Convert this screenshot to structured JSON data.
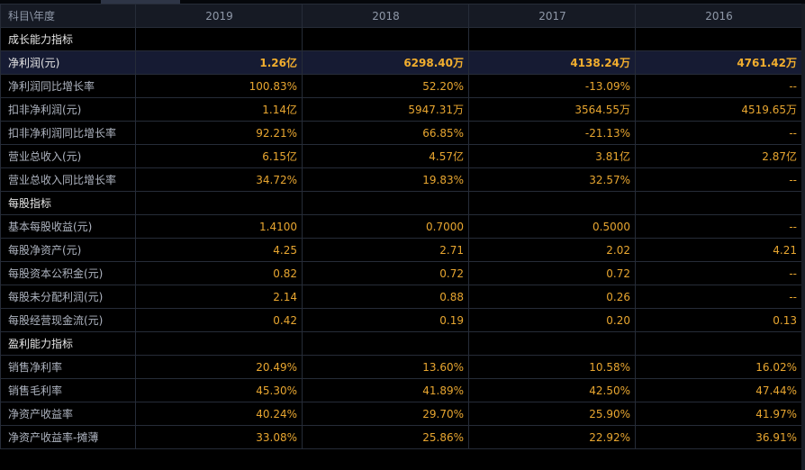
{
  "header": {
    "label": "科目\\年度",
    "years": [
      "2019",
      "2018",
      "2017",
      "2016"
    ]
  },
  "rows": [
    {
      "type": "section",
      "label": "成长能力指标"
    },
    {
      "type": "highlight",
      "label": "净利润(元)",
      "values": [
        "1.26亿",
        "6298.40万",
        "4138.24万",
        "4761.42万"
      ]
    },
    {
      "type": "data",
      "label": "净利润同比增长率",
      "values": [
        "100.83%",
        "52.20%",
        "-13.09%",
        "--"
      ]
    },
    {
      "type": "data",
      "label": "扣非净利润(元)",
      "values": [
        "1.14亿",
        "5947.31万",
        "3564.55万",
        "4519.65万"
      ]
    },
    {
      "type": "data",
      "label": "扣非净利润同比增长率",
      "values": [
        "92.21%",
        "66.85%",
        "-21.13%",
        "--"
      ]
    },
    {
      "type": "data",
      "label": "营业总收入(元)",
      "values": [
        "6.15亿",
        "4.57亿",
        "3.81亿",
        "2.87亿"
      ]
    },
    {
      "type": "data",
      "label": "营业总收入同比增长率",
      "values": [
        "34.72%",
        "19.83%",
        "32.57%",
        "--"
      ]
    },
    {
      "type": "section",
      "label": "每股指标"
    },
    {
      "type": "data",
      "label": "基本每股收益(元)",
      "values": [
        "1.4100",
        "0.7000",
        "0.5000",
        "--"
      ]
    },
    {
      "type": "data",
      "label": "每股净资产(元)",
      "values": [
        "4.25",
        "2.71",
        "2.02",
        "4.21"
      ]
    },
    {
      "type": "data",
      "label": "每股资本公积金(元)",
      "values": [
        "0.82",
        "0.72",
        "0.72",
        "--"
      ]
    },
    {
      "type": "data",
      "label": "每股未分配利润(元)",
      "values": [
        "2.14",
        "0.88",
        "0.26",
        "--"
      ]
    },
    {
      "type": "data",
      "label": "每股经营现金流(元)",
      "values": [
        "0.42",
        "0.19",
        "0.20",
        "0.13"
      ]
    },
    {
      "type": "section",
      "label": "盈利能力指标"
    },
    {
      "type": "data",
      "label": "销售净利率",
      "values": [
        "20.49%",
        "13.60%",
        "10.58%",
        "16.02%"
      ]
    },
    {
      "type": "data",
      "label": "销售毛利率",
      "values": [
        "45.30%",
        "41.89%",
        "42.50%",
        "47.44%"
      ]
    },
    {
      "type": "data",
      "label": "净资产收益率",
      "values": [
        "40.24%",
        "29.70%",
        "25.90%",
        "41.97%"
      ]
    },
    {
      "type": "data",
      "label": "净资产收益率-摊薄",
      "values": [
        "33.08%",
        "25.86%",
        "22.92%",
        "36.91%"
      ]
    }
  ]
}
